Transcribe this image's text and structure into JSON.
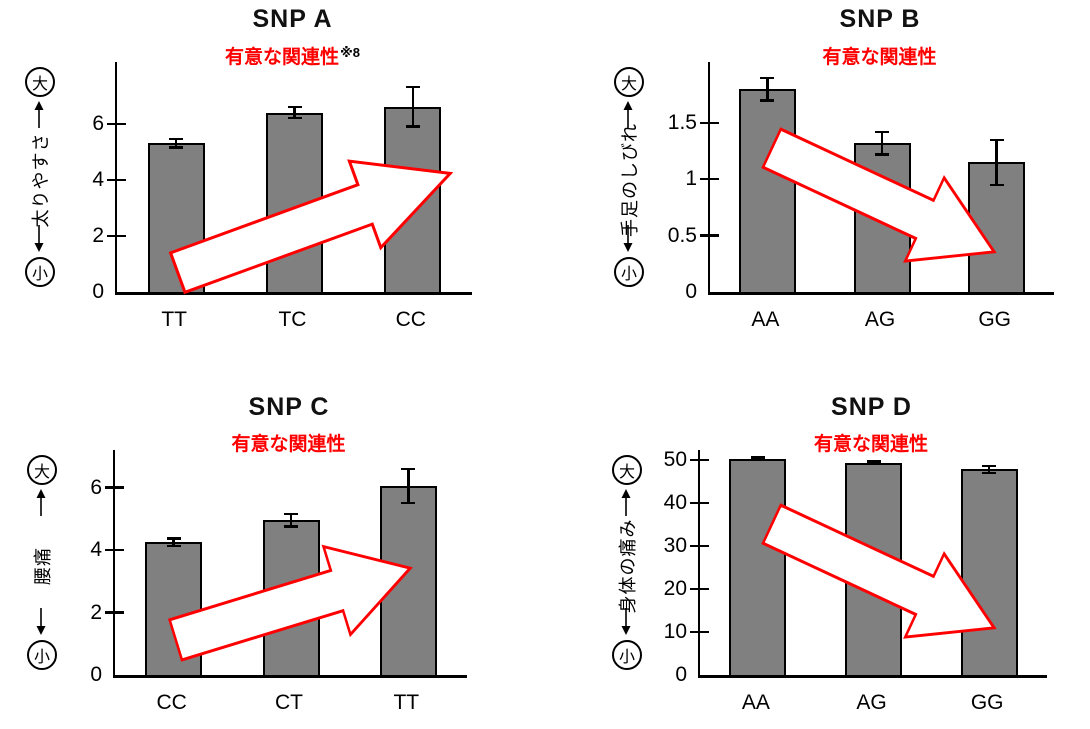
{
  "colors": {
    "bar_fill": "#808080",
    "bar_border": "#000000",
    "accent_red": "#ff0000",
    "arrow_fill": "#ffffff",
    "text": "#000000"
  },
  "chart_data": [
    {
      "id": "snp-a",
      "type": "bar",
      "title": "SNP A",
      "subtitle": "有意な関連性",
      "subtitle_superscript": "※8",
      "y_label": "太りやすさ",
      "scale_top": "大",
      "scale_bottom": "小",
      "categories": [
        "TT",
        "TC",
        "CC"
      ],
      "values": [
        5.3,
        6.4,
        6.6
      ],
      "errors": [
        0.15,
        0.2,
        0.7
      ],
      "ticks": [
        0,
        2,
        4,
        6
      ],
      "ylim": [
        0,
        8.2
      ],
      "trend": "increasing",
      "legend": "none",
      "grid": false
    },
    {
      "id": "snp-b",
      "type": "bar",
      "title": "SNP B",
      "subtitle": "有意な関連性",
      "y_label": "手足のしびれ",
      "scale_top": "大",
      "scale_bottom": "小",
      "categories": [
        "AA",
        "AG",
        "GG"
      ],
      "values": [
        1.8,
        1.32,
        1.15
      ],
      "errors": [
        0.1,
        0.1,
        0.2
      ],
      "ticks": [
        0,
        0.5,
        1,
        1.5
      ],
      "ylim": [
        0,
        2.04
      ],
      "trend": "decreasing",
      "legend": "none",
      "grid": false
    },
    {
      "id": "snp-c",
      "type": "bar",
      "title": "SNP C",
      "subtitle": "有意な関連性",
      "y_label": "腰痛",
      "scale_top": "大",
      "scale_bottom": "小",
      "categories": [
        "CC",
        "CT",
        "TT"
      ],
      "values": [
        4.25,
        4.95,
        6.05
      ],
      "errors": [
        0.12,
        0.2,
        0.55
      ],
      "ticks": [
        0,
        2,
        4,
        6
      ],
      "ylim": [
        0,
        7.2
      ],
      "trend": "increasing",
      "legend": "none",
      "grid": false
    },
    {
      "id": "snp-d",
      "type": "bar",
      "title": "SNP D",
      "subtitle": "有意な関連性",
      "y_label": "身体の痛み",
      "scale_top": "大",
      "scale_bottom": "小",
      "categories": [
        "AA",
        "AG",
        "GG"
      ],
      "values": [
        50.3,
        49.3,
        47.8
      ],
      "errors": [
        0.3,
        0.3,
        0.8
      ],
      "ticks": [
        0,
        10,
        20,
        30,
        40,
        50
      ],
      "ylim": [
        0,
        52.3
      ],
      "trend": "decreasing",
      "legend": "none",
      "grid": false
    }
  ]
}
